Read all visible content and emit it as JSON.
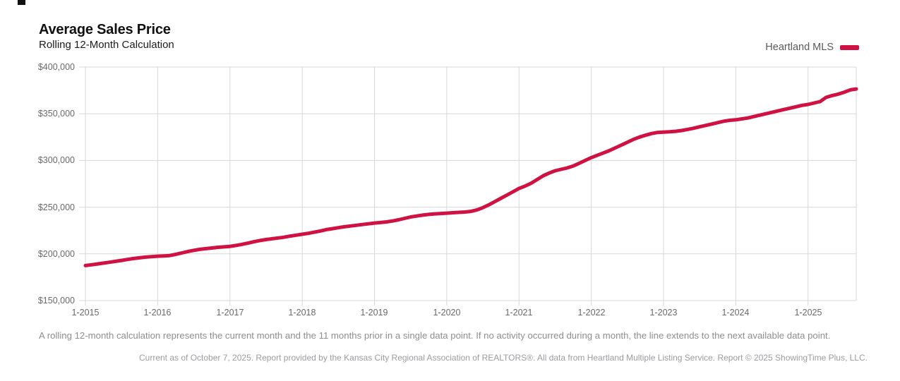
{
  "header": {
    "title": "Average Sales Price",
    "subtitle": "Rolling 12-Month Calculation"
  },
  "legend": {
    "label": "Heartland MLS",
    "swatch_color": "#d01243"
  },
  "chart_data": {
    "type": "line",
    "title": "Average Sales Price",
    "subtitle": "Rolling 12-Month Calculation",
    "grid": true,
    "legend_position": "top-right",
    "ylim": [
      150000,
      400000
    ],
    "y_tick_step": 50000,
    "y_tick_labels": [
      "$150,000",
      "$200,000",
      "$250,000",
      "$300,000",
      "$350,000",
      "$400,000"
    ],
    "x_tick_labels": [
      "1-2015",
      "1-2016",
      "1-2017",
      "1-2018",
      "1-2019",
      "1-2020",
      "1-2021",
      "1-2022",
      "1-2023",
      "1-2024",
      "1-2025"
    ],
    "x_start_month": "2015-01",
    "x_end_month": "2025-09",
    "series": [
      {
        "name": "Heartland MLS",
        "color": "#d01243",
        "values": [
          187500,
          188300,
          189200,
          190100,
          191000,
          192000,
          193000,
          194000,
          195000,
          195800,
          196500,
          197000,
          197500,
          197800,
          198200,
          199500,
          201000,
          202500,
          203800,
          204800,
          205600,
          206300,
          207000,
          207500,
          208000,
          209000,
          210200,
          211500,
          213000,
          214300,
          215300,
          216200,
          217000,
          217800,
          219000,
          220000,
          221000,
          222000,
          223200,
          224500,
          226000,
          227000,
          228000,
          229000,
          229800,
          230600,
          231400,
          232200,
          233000,
          233500,
          234200,
          235200,
          236500,
          238000,
          239500,
          240500,
          241500,
          242200,
          242800,
          243200,
          243600,
          244000,
          244400,
          244800,
          245500,
          247000,
          249500,
          252500,
          256000,
          259500,
          263000,
          266500,
          270000,
          272500,
          275500,
          279500,
          283500,
          286500,
          289000,
          290500,
          292000,
          294000,
          297000,
          300000,
          303000,
          305500,
          308000,
          310500,
          313500,
          316500,
          319500,
          322500,
          325000,
          327000,
          328800,
          330000,
          330300,
          330700,
          331200,
          332000,
          333200,
          334500,
          336000,
          337500,
          339000,
          340500,
          342000,
          343000,
          343500,
          344500,
          345500,
          347000,
          348500,
          350000,
          351500,
          353000,
          354500,
          356000,
          357500,
          359000,
          360000,
          361500,
          363000,
          367500,
          369500,
          371000,
          373000,
          375500,
          376500
        ]
      }
    ]
  },
  "footnote": "A rolling 12-month calculation represents the current month and the 11 months prior in a single data point. If no activity occurred during a month, the line extends to the next available data point.",
  "footer": "Current as of October 7, 2025. Report provided by the Kansas City Regional Association of REALTORS®. All data from Heartland Multiple Listing Service. Report © 2025 ShowingTime Plus, LLC."
}
